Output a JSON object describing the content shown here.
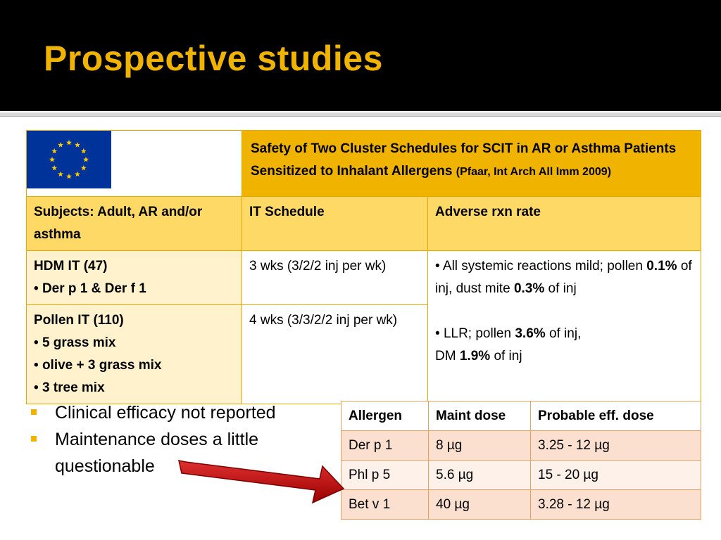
{
  "slide": {
    "title": "Prospective studies",
    "colors": {
      "title_bar": "#000000",
      "title_text": "#f0b400",
      "accent": "#f0b400",
      "arrow": "#c00000"
    }
  },
  "study_table": {
    "flag_icon": "eu-flag-icon",
    "header": {
      "title": "Safety of Two Cluster Schedules for SCIT in AR or Asthma Patients Sensitized to Inhalant Allergens",
      "citation": "(Pfaar, Int Arch All Imm 2009)"
    },
    "columns": [
      "Subjects: Adult, AR and/or asthma",
      "IT Schedule",
      "Adverse rxn rate"
    ],
    "rows": [
      {
        "subject": "HDM IT (47)",
        "bullets": [
          "Der p 1 & Der f 1"
        ],
        "schedule": "3 wks (3/2/2 inj per wk)"
      },
      {
        "subject": "Pollen IT (110)",
        "bullets": [
          "5 grass mix",
          "olive + 3 grass mix",
          "3 tree mix"
        ],
        "schedule": "4 wks (3/3/2/2 inj per wk)"
      }
    ],
    "adverse": {
      "systemic_prefix": "All systemic reactions mild; pollen",
      "systemic_pollen": "0.1%",
      "systemic_mid": "of inj, dust mite",
      "systemic_mite": "0.3%",
      "systemic_suffix": "of inj",
      "llr_prefix": "LLR; pollen",
      "llr_pollen": "3.6%",
      "llr_mid": "of inj,",
      "llr_dm_prefix": "DM",
      "llr_dm": "1.9%",
      "llr_suffix": "of inj"
    }
  },
  "bullets": [
    "Clinical efficacy not reported",
    "Maintenance doses a little questionable"
  ],
  "dose_table": {
    "headers": [
      "Allergen",
      "Maint dose",
      "Probable eff. dose"
    ],
    "rows": [
      [
        "Der p 1",
        "8 µg",
        "3.25 - 12 µg"
      ],
      [
        "Phl p 5",
        "5.6 µg",
        "15 - 20 µg"
      ],
      [
        "Bet v 1",
        "40 µg",
        "3.28 - 12 µg"
      ]
    ]
  }
}
